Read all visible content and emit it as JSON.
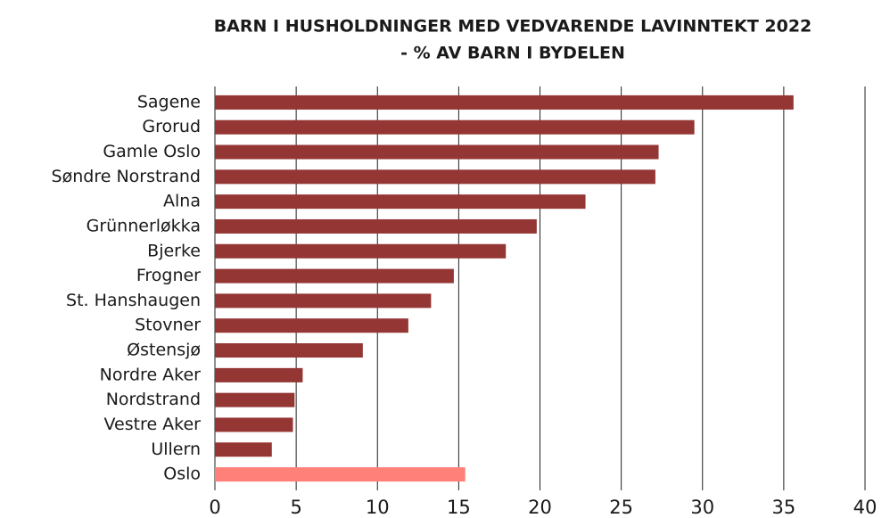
{
  "chart_data": {
    "type": "bar",
    "orientation": "horizontal",
    "title": "BARN I HUSHOLDNINGER MED VEDVARENDE LAVINNTEKT 2022",
    "subtitle": "- % AV BARN I BYDELEN",
    "categories": [
      "Sagene",
      "Grorud",
      "Gamle Oslo",
      "Søndre Norstrand",
      "Alna",
      "Grünnerløkka",
      "Bjerke",
      "Frogner",
      "St. Hanshaugen",
      "Stovner",
      "Østensjø",
      "Nordre Aker",
      "Nordstrand",
      "Vestre Aker",
      "Ullern",
      "Oslo"
    ],
    "values": [
      35.6,
      29.5,
      27.3,
      27.1,
      22.8,
      19.8,
      17.9,
      14.7,
      13.3,
      11.9,
      9.1,
      5.4,
      4.9,
      4.8,
      3.5,
      15.4
    ],
    "colors": [
      "#943634",
      "#943634",
      "#943634",
      "#943634",
      "#943634",
      "#943634",
      "#943634",
      "#943634",
      "#943634",
      "#943634",
      "#943634",
      "#943634",
      "#943634",
      "#943634",
      "#943634",
      "#ff8078"
    ],
    "xlim": [
      0,
      40
    ],
    "xticks": [
      0,
      5,
      10,
      15,
      20,
      25,
      30,
      35,
      40
    ],
    "grid": true
  }
}
